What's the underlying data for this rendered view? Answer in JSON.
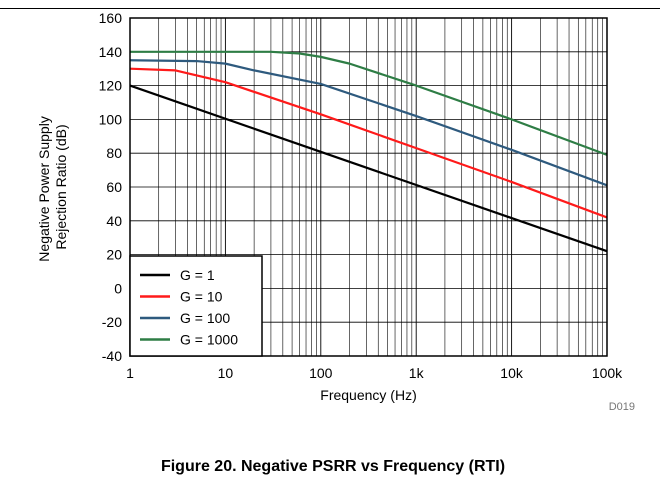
{
  "chart_data": {
    "type": "line",
    "title": "",
    "xlabel": "Frequency (Hz)",
    "ylabel_lines": [
      "Negative Power Supply",
      "Rejection Ratio (dB)"
    ],
    "x_scale": "log",
    "xlim": [
      1,
      100000
    ],
    "ylim": [
      -40,
      160
    ],
    "y_ticks": [
      -40,
      -20,
      0,
      20,
      40,
      60,
      80,
      100,
      120,
      140,
      160
    ],
    "x_ticks": [
      1,
      10,
      100,
      1000,
      10000,
      100000
    ],
    "x_tick_labels": [
      "1",
      "10",
      "100",
      "1k",
      "10k",
      "100k"
    ],
    "grid": true,
    "legend_position": "bottom-left",
    "series": [
      {
        "name": "G = 1",
        "color": "#000000",
        "x": [
          1,
          100000
        ],
        "y": [
          120,
          22
        ]
      },
      {
        "name": "G = 10",
        "color": "#ff1a1a",
        "x": [
          1,
          3,
          10,
          100,
          1000,
          10000,
          100000
        ],
        "y": [
          130,
          129,
          122,
          103,
          83,
          63,
          42
        ]
      },
      {
        "name": "G = 100",
        "color": "#2e5a7e",
        "x": [
          1,
          5,
          10,
          20,
          100,
          1000,
          10000,
          100000
        ],
        "y": [
          135,
          134.5,
          133,
          129,
          121,
          102,
          82,
          61
        ]
      },
      {
        "name": "G = 1000",
        "color": "#2e7d45",
        "x": [
          1,
          30,
          60,
          100,
          200,
          1000,
          10000,
          100000
        ],
        "y": [
          140,
          140,
          139,
          137,
          133,
          120,
          100,
          79
        ]
      }
    ]
  },
  "figure_code": "D019",
  "caption": "Figure 20. Negative PSRR vs Frequency (RTI)"
}
